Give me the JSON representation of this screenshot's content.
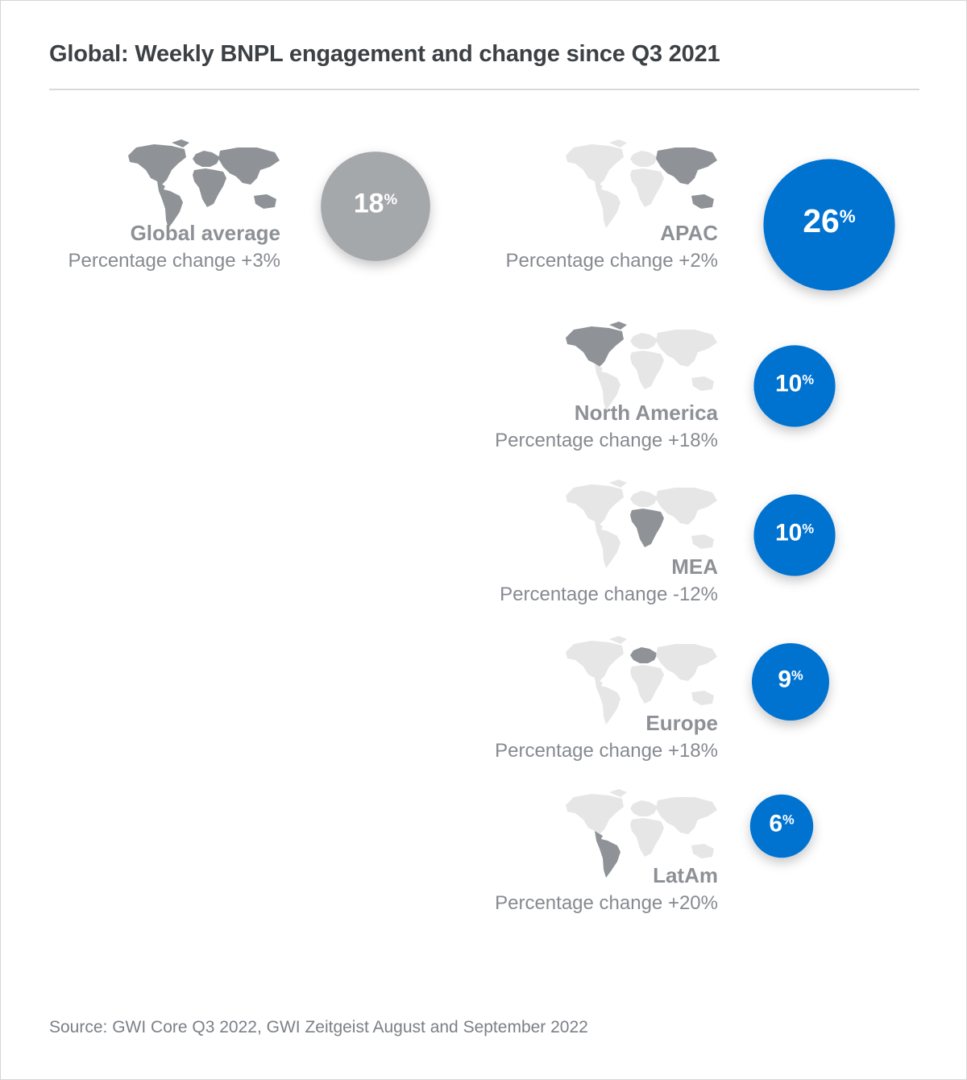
{
  "title": "Global: Weekly BNPL engagement and change since Q3 2021",
  "source": "Source: GWI Core Q3 2022, GWI Zeitgeist August and September 2022",
  "colors": {
    "global": "#a5a8ab",
    "region": "#0073d1",
    "map_base": "#e6e6e6",
    "map_highlight": "#8f9397"
  },
  "chart_data": {
    "type": "bubble",
    "title": "Global: Weekly BNPL engagement and change since Q3 2021",
    "unit": "%",
    "items": [
      {
        "id": "global",
        "name": "Global average",
        "value": 18,
        "value_label": "18",
        "change_label": "Percentage change +3%",
        "change": 3,
        "highlight": "all"
      },
      {
        "id": "apac",
        "name": "APAC",
        "value": 26,
        "value_label": "26",
        "change_label": "Percentage change +2%",
        "change": 2,
        "highlight": "apac"
      },
      {
        "id": "north-america",
        "name": "North America",
        "value": 10,
        "value_label": "10",
        "change_label": "Percentage change +18%",
        "change": 18,
        "highlight": "na"
      },
      {
        "id": "mea",
        "name": "MEA",
        "value": 10,
        "value_label": "10",
        "change_label": "Percentage change -12%",
        "change": -12,
        "highlight": "mea"
      },
      {
        "id": "europe",
        "name": "Europe",
        "value": 9,
        "value_label": "9",
        "change_label": "Percentage change +18%",
        "change": 18,
        "highlight": "eu"
      },
      {
        "id": "latam",
        "name": "LatAm",
        "value": 6,
        "value_label": "6",
        "change_label": "Percentage change +20%",
        "change": 20,
        "highlight": "latam"
      }
    ]
  }
}
